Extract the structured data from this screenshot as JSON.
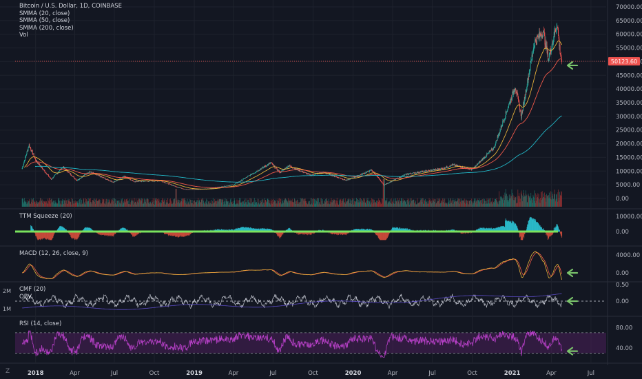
{
  "header": {
    "title": "Bitcoin / U.S. Dollar, 1D, COINBASE",
    "indicators": [
      "SMMA (20, close)",
      "SMMA (50, close)",
      "SMMA (200, close)",
      "Vol"
    ]
  },
  "price_label": "50123.60",
  "panes": {
    "ttm": "TTM Squeeze (20)",
    "macd": "MACD (12, 26, close, 9)",
    "cmf": "CMF (20)",
    "obv": "OBV",
    "rsi": "RSI (14, close)"
  },
  "obv_scale": [
    "2M",
    "1M"
  ],
  "logo": "Z",
  "colors": {
    "up": "#26a69a",
    "down": "#ef5350",
    "smma20": "#e8b23a",
    "smma50": "#f25a4a",
    "smma200": "#22b8c8",
    "rsi": "#b43fc4",
    "rsi_band": "#4a1f5a",
    "arrow": "#7ac36b",
    "squeeze": "#7ae35d",
    "macd": "#e8b23a",
    "macd_signal": "#f25a4a"
  },
  "chart_data": {
    "type": "line",
    "title": "Bitcoin / U.S. Dollar, 1D, COINBASE",
    "x_tick_labels": [
      "2018",
      "Apr",
      "Jul",
      "Oct",
      "2019",
      "Apr",
      "Jul",
      "Oct",
      "2020",
      "Apr",
      "Jul",
      "Oct",
      "2021",
      "Apr",
      "Jul"
    ],
    "y_ticks": [
      "70000.00",
      "65000.00",
      "60000.00",
      "55000.00",
      "50000.00",
      "45000.00",
      "40000.00",
      "35000.00",
      "30000.00",
      "25000.00",
      "20000.00",
      "15000.00",
      "10000.00",
      "5000.00",
      "0.00"
    ],
    "ylim": [
      0,
      70000
    ],
    "last_price": 50123.6,
    "price_keypoints": [
      [
        "2017-12-01",
        11000
      ],
      [
        "2017-12-17",
        19500
      ],
      [
        "2018-01-01",
        14000
      ],
      [
        "2018-02-06",
        7000
      ],
      [
        "2018-03-05",
        11500
      ],
      [
        "2018-04-06",
        6600
      ],
      [
        "2018-05-05",
        9800
      ],
      [
        "2018-06-29",
        5900
      ],
      [
        "2018-07-25",
        8200
      ],
      [
        "2018-08-14",
        6200
      ],
      [
        "2018-10-15",
        6500
      ],
      [
        "2018-11-20",
        4300
      ],
      [
        "2018-12-15",
        3200
      ],
      [
        "2019-02-01",
        3500
      ],
      [
        "2019-04-02",
        5000
      ],
      [
        "2019-06-26",
        13000
      ],
      [
        "2019-07-17",
        9500
      ],
      [
        "2019-08-06",
        12000
      ],
      [
        "2019-09-25",
        8500
      ],
      [
        "2019-10-26",
        9500
      ],
      [
        "2019-12-17",
        6600
      ],
      [
        "2020-02-13",
        10400
      ],
      [
        "2020-03-12",
        4900
      ],
      [
        "2020-05-01",
        8800
      ],
      [
        "2020-07-26",
        11000
      ],
      [
        "2020-08-17",
        12300
      ],
      [
        "2020-10-01",
        10600
      ],
      [
        "2020-11-20",
        18500
      ],
      [
        "2021-01-08",
        41000
      ],
      [
        "2021-01-22",
        30000
      ],
      [
        "2021-02-21",
        57000
      ],
      [
        "2021-03-13",
        61000
      ],
      [
        "2021-03-25",
        51000
      ],
      [
        "2021-04-14",
        64000
      ],
      [
        "2021-04-20",
        55000
      ],
      [
        "2021-04-25",
        50123.6
      ]
    ],
    "ttm_ticks": [
      "10000.00",
      "0.00"
    ],
    "macd_ticks": [
      "4000.00",
      "0.00"
    ],
    "cmf_ticks": [
      "0.50",
      "0.00"
    ],
    "rsi_ticks": [
      "80.00",
      "40.00"
    ],
    "rsi_bands": [
      70,
      30
    ],
    "grid": true,
    "legend": "top-left"
  }
}
